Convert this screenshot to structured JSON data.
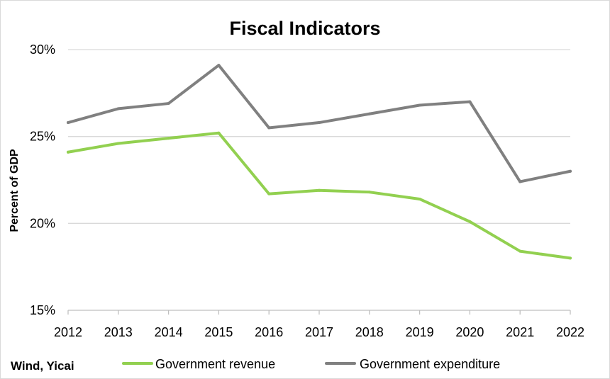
{
  "chart_data": {
    "type": "line",
    "title": "Fiscal Indicators",
    "xlabel": "",
    "ylabel": "Percent of GDP",
    "x": [
      "2012",
      "2013",
      "2014",
      "2015",
      "2016",
      "2017",
      "2018",
      "2019",
      "2020",
      "2021",
      "2022"
    ],
    "ylim": [
      15,
      30
    ],
    "yticks": [
      15,
      20,
      25,
      30
    ],
    "ytick_labels": [
      "15%",
      "20%",
      "25%",
      "30%"
    ],
    "grid": true,
    "legend_position": "bottom",
    "series": [
      {
        "name": "Government revenue",
        "color": "#92d050",
        "values": [
          24.1,
          24.6,
          24.9,
          25.2,
          21.7,
          21.9,
          21.8,
          21.4,
          20.1,
          18.4,
          18.0
        ]
      },
      {
        "name": "Government expenditure",
        "color": "#808080",
        "values": [
          25.8,
          26.6,
          26.9,
          29.1,
          25.5,
          25.8,
          26.3,
          26.8,
          27.0,
          22.4,
          23.0
        ]
      }
    ],
    "source": "Wind, Yicai"
  }
}
